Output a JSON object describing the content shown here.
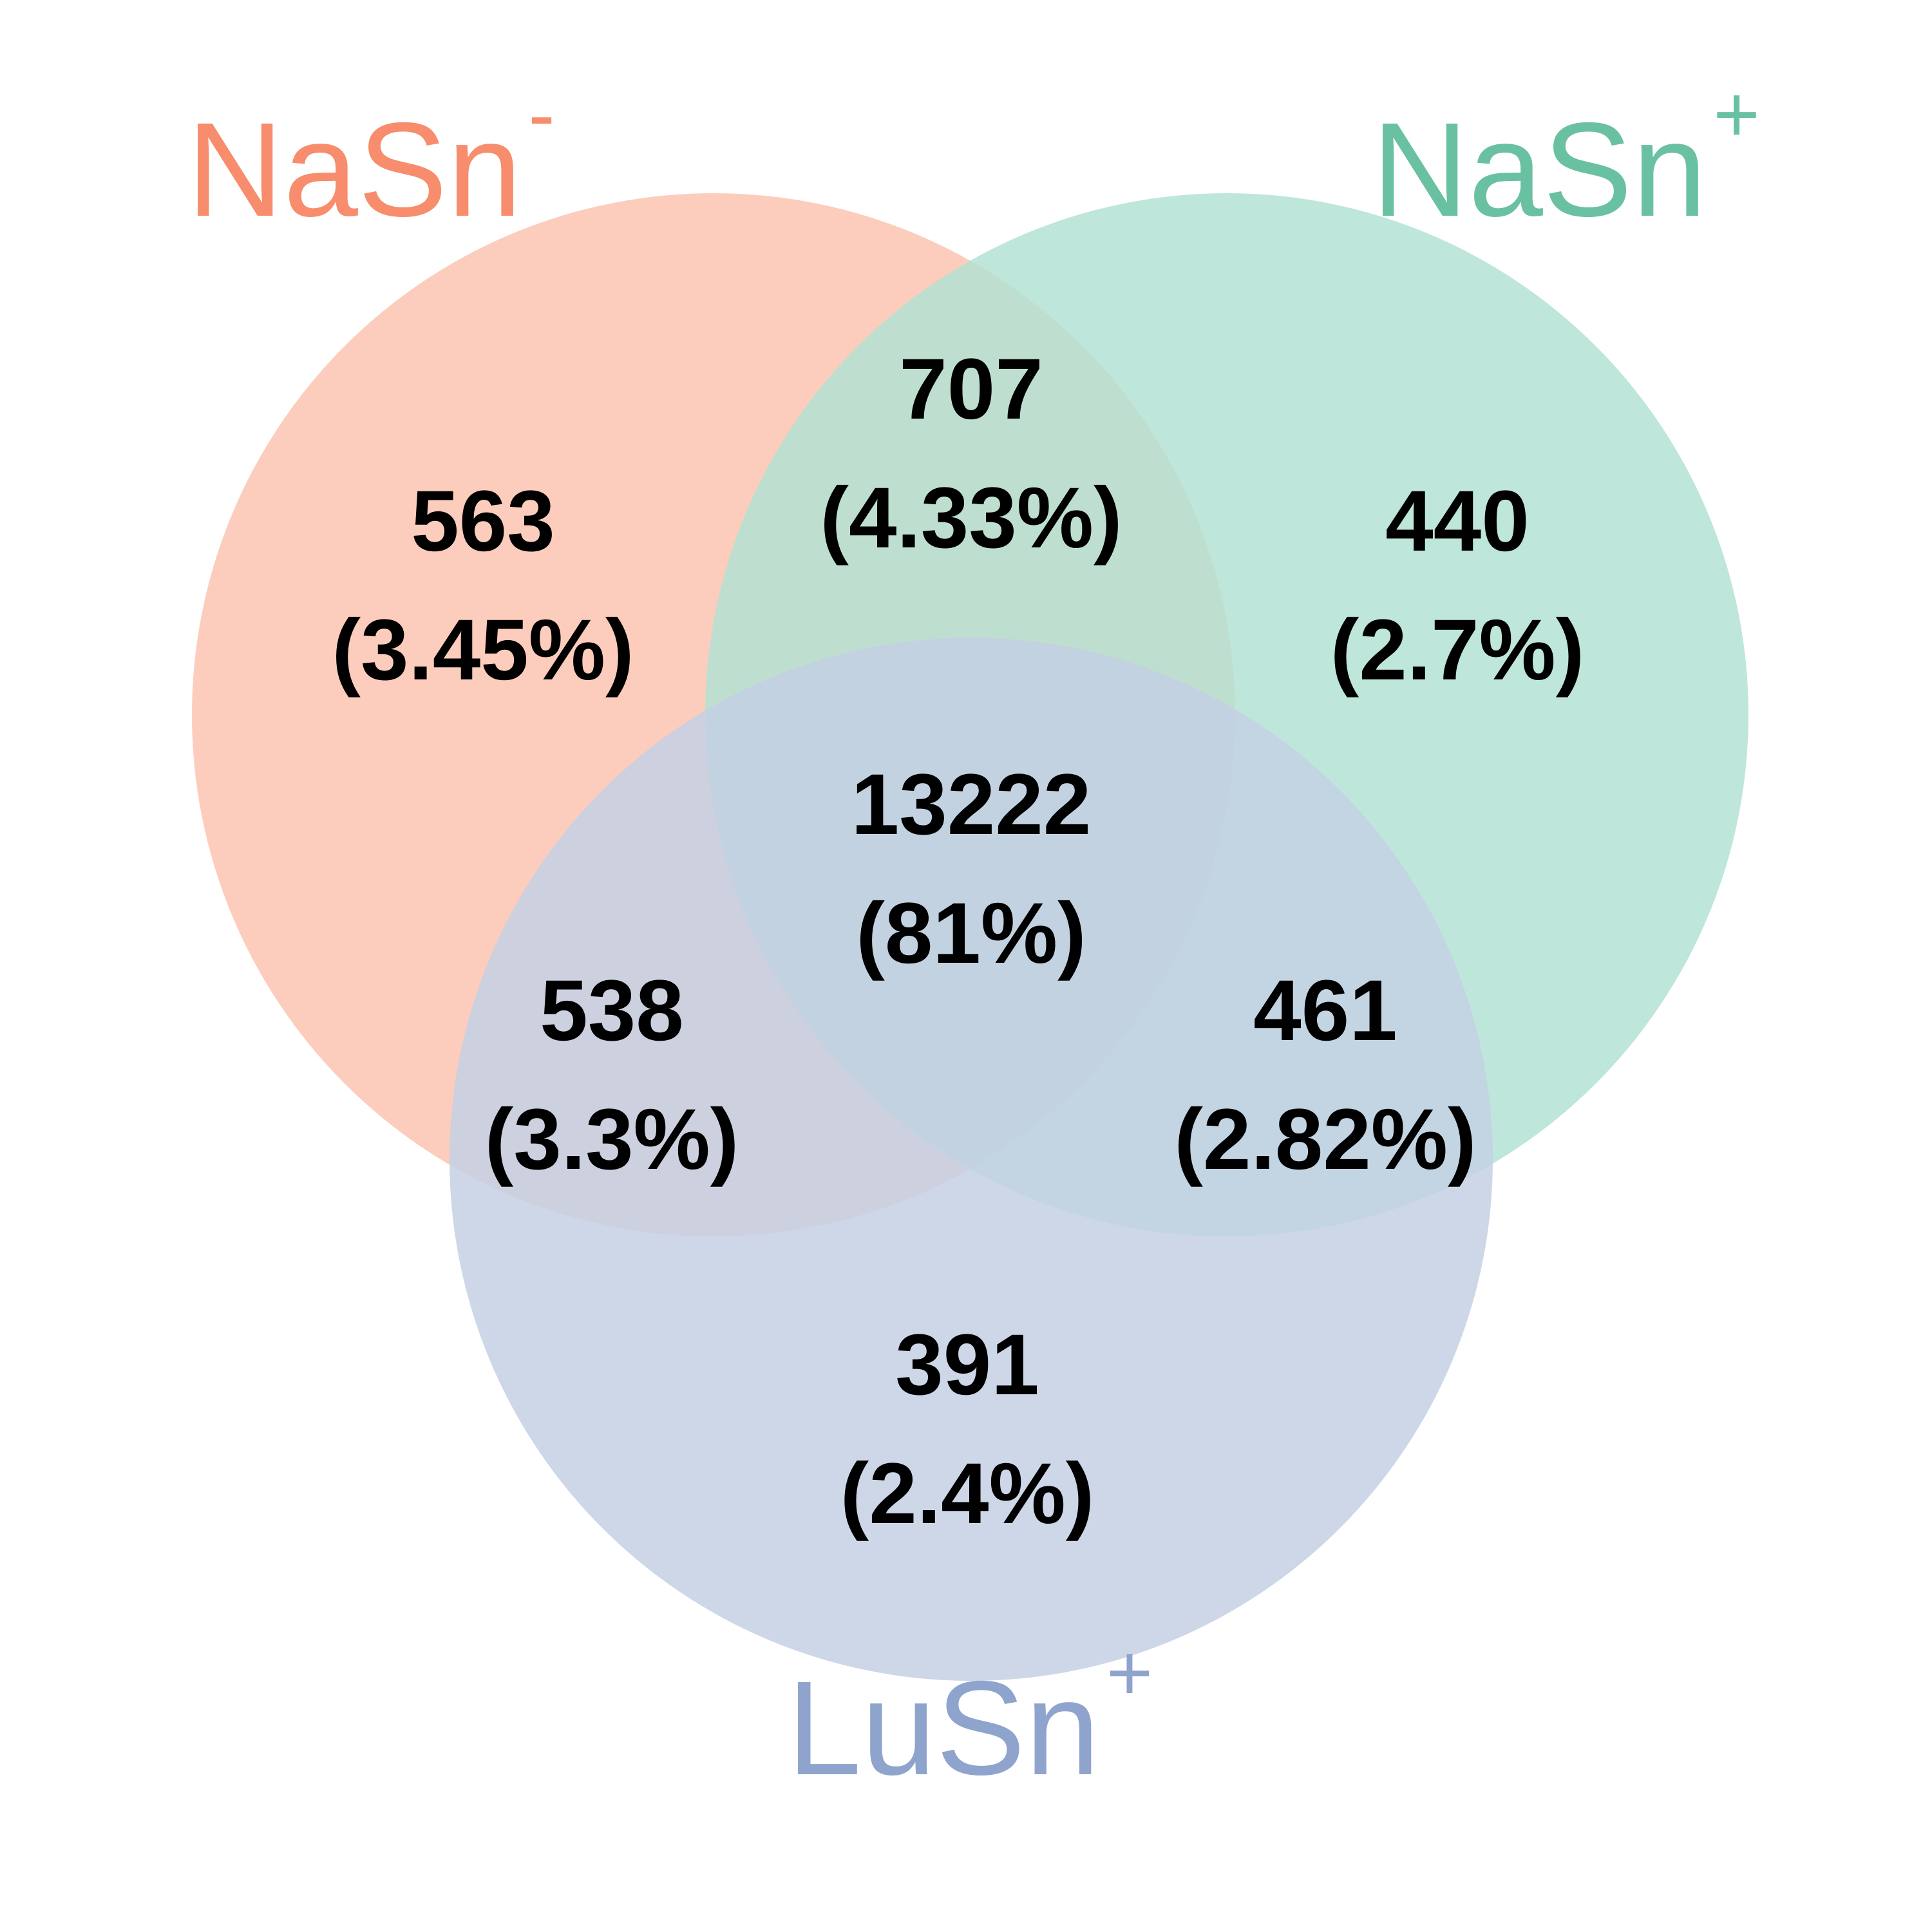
{
  "sets": [
    {
      "id": "A",
      "name": "NaSn",
      "sup": "-",
      "color": "#f78d6c",
      "fill": "#fcc4b0"
    },
    {
      "id": "B",
      "name": "NaSn",
      "sup": "+",
      "color": "#69c1a2",
      "fill": "#b3e2d3"
    },
    {
      "id": "C",
      "name": "LuSn",
      "sup": "+",
      "color": "#8fa4cc",
      "fill": "#c4d0e4"
    }
  ],
  "regions": {
    "a_only": {
      "count": "563",
      "pct": "(3.45%)"
    },
    "ab": {
      "count": "707",
      "pct": "(4.33%)"
    },
    "b_only": {
      "count": "440",
      "pct": "(2.7%)"
    },
    "abc": {
      "count": "13222",
      "pct": "(81%)"
    },
    "ac": {
      "count": "538",
      "pct": "(3.3%)"
    },
    "bc": {
      "count": "461",
      "pct": "(2.82%)"
    },
    "c_only": {
      "count": "391",
      "pct": "(2.4%)"
    }
  }
}
